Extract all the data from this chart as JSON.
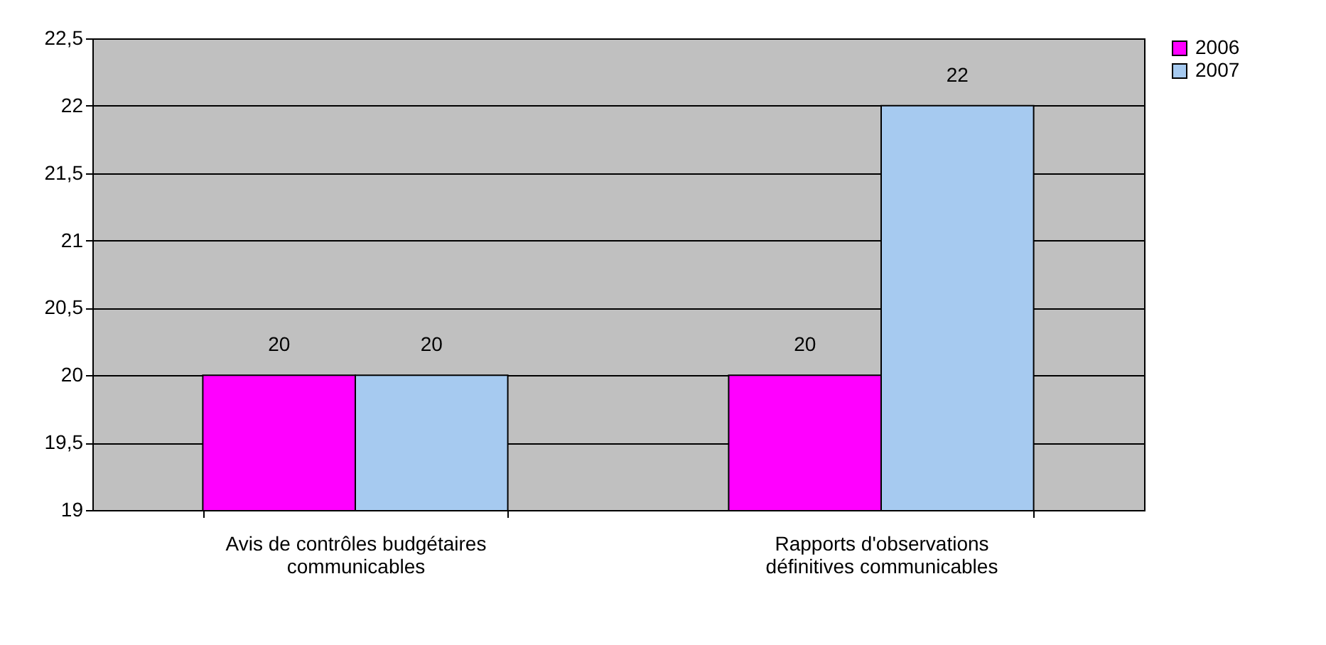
{
  "chart_data": {
    "type": "bar",
    "categories": [
      "Avis de contrôles budgétaires communicables",
      "Rapports d'observations définitives communicables"
    ],
    "series": [
      {
        "name": "2006",
        "color": "#ff00ff",
        "values": [
          20,
          20
        ]
      },
      {
        "name": "2007",
        "color": "#a6caf0",
        "values": [
          20,
          22
        ]
      }
    ],
    "ylim": [
      19,
      22.5
    ],
    "yticks": [
      19,
      {
        "value": 19.5,
        "label": "19,5"
      },
      20,
      {
        "value": 20.5,
        "label": "20,5"
      },
      21,
      {
        "value": 21.5,
        "label": "21,5"
      },
      22,
      {
        "value": 22.5,
        "label": "22,5"
      }
    ],
    "grid": "y",
    "legend": "right",
    "data_labels": true
  }
}
